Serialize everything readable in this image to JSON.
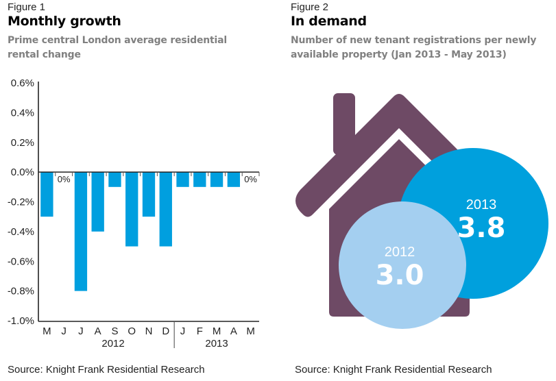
{
  "figure1": {
    "label": "Figure 1",
    "title": "Monthly growth",
    "subtitle_line1": "Prime central London average residential",
    "subtitle_line2": "rental change",
    "source": "Source: Knight Frank Residential Research"
  },
  "figure2": {
    "label": "Figure 2",
    "title": "In demand",
    "subtitle_line1": "Number of new tenant registrations per newly",
    "subtitle_line2": "available property (Jan 2013 - May 2013)",
    "source": "Source: Knight Frank Residential Research",
    "colors": {
      "house": "#6e4a65",
      "circle_2013": "#00a0dd",
      "circle_2012": "#a4cff0"
    }
  },
  "chart_data": [
    {
      "type": "bar",
      "title": "Monthly growth",
      "subtitle": "Prime central London average residential rental change",
      "categories": [
        "M",
        "J",
        "J",
        "A",
        "S",
        "O",
        "N",
        "D",
        "J",
        "F",
        "M",
        "A",
        "M"
      ],
      "year_groups": [
        {
          "label": "2012",
          "months": 8
        },
        {
          "label": "2013",
          "months": 5
        }
      ],
      "values": [
        -0.3,
        0.0,
        -0.8,
        -0.4,
        -0.1,
        -0.5,
        -0.3,
        -0.5,
        -0.1,
        -0.1,
        -0.1,
        -0.1,
        0.0
      ],
      "zero_labels": [
        "0%",
        "0%"
      ],
      "yticks": [
        "0.6%",
        "0.4%",
        "0.2%",
        "0.0%",
        "-0.2%",
        "-0.4%",
        "-0.6%",
        "-0.8%",
        "-1.0%"
      ],
      "ylim": [
        -1.0,
        0.6
      ],
      "xlabel": "",
      "ylabel": "",
      "grid": false,
      "bar_color": "#009fdf"
    },
    {
      "type": "bubble",
      "title": "In demand",
      "subtitle": "Number of new tenant registrations per newly available property (Jan 2013 - May 2013)",
      "series": [
        {
          "name": "2012",
          "value": 3.0,
          "value_label": "3.0"
        },
        {
          "name": "2013",
          "value": 3.8,
          "value_label": "3.8"
        }
      ]
    }
  ]
}
